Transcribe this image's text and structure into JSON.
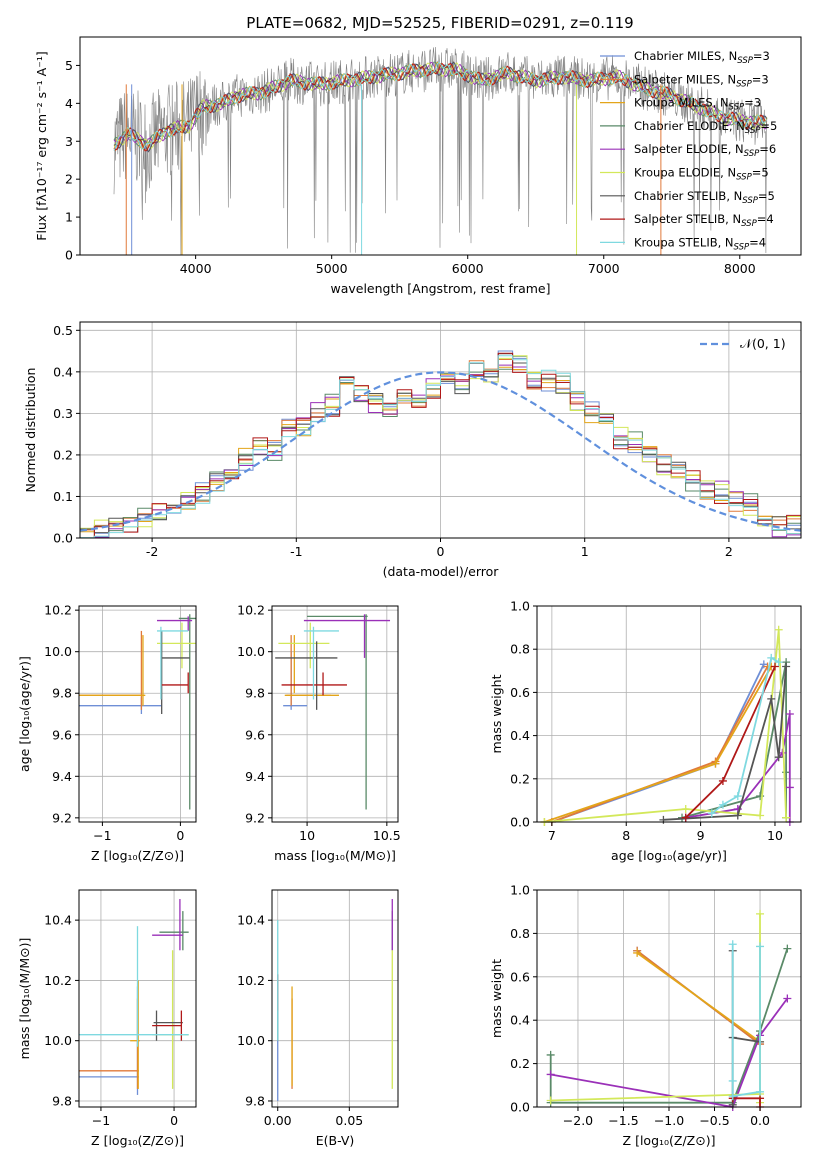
{
  "title": "PLATE=0682, MJD=52525, FIBERID=0291, z=0.119",
  "models": [
    {
      "label": "Chabrier MILES, N",
      "sub": "SSP",
      "eq": "=3",
      "color": "#6f8fd6"
    },
    {
      "label": "Salpeter MILES, N",
      "sub": "SSP",
      "eq": "=3",
      "color": "#e07a3a"
    },
    {
      "label": "Kroupa MILES, N",
      "sub": "SSP",
      "eq": "=3",
      "color": "#e3a51a"
    },
    {
      "label": "Chabrier ELODIE, N",
      "sub": "SSP",
      "eq": "=5",
      "color": "#5a8a68"
    },
    {
      "label": "Salpeter ELODIE, N",
      "sub": "SSP",
      "eq": "=6",
      "color": "#9a30b8"
    },
    {
      "label": "Kroupa ELODIE, N",
      "sub": "SSP",
      "eq": "=5",
      "color": "#d3e85a"
    },
    {
      "label": "Chabrier STELIB, N",
      "sub": "SSP",
      "eq": "=5",
      "color": "#555555"
    },
    {
      "label": "Salpeter STELIB, N",
      "sub": "SSP",
      "eq": "=4",
      "color": "#b01818"
    },
    {
      "label": "Kroupa STELIB, N",
      "sub": "SSP",
      "eq": "=4",
      "color": "#7fd9e0"
    }
  ],
  "chart_data": [
    {
      "id": "spectrum",
      "type": "line",
      "xlabel": "wavelength [Angstrom, rest frame]",
      "ylabel": "Flux [fλ10⁻¹⁷ erg cm⁻² s⁻¹ A⁻¹]",
      "xlim": [
        3150,
        8450
      ],
      "ylim": [
        0,
        5.75
      ],
      "xticks": [
        4000,
        5000,
        6000,
        7000,
        8000
      ],
      "yticks": [
        0,
        1,
        2,
        3,
        4,
        5
      ],
      "grid": false,
      "legend": "right",
      "data_color": "#808080",
      "continuum_x": [
        3400,
        3500,
        3650,
        3800,
        3950,
        4050,
        4200,
        4300,
        4500,
        4700,
        4900,
        5100,
        5300,
        5500,
        5700,
        5900,
        6100,
        6300,
        6500,
        6700,
        6900,
        7100,
        7300,
        7500,
        7700,
        7900,
        8100,
        8200
      ],
      "continuum_y": [
        2.9,
        3.2,
        2.9,
        3.3,
        3.4,
        3.9,
        4.0,
        4.2,
        4.3,
        4.6,
        4.5,
        4.6,
        4.7,
        4.8,
        4.9,
        4.9,
        4.6,
        4.8,
        4.6,
        4.7,
        4.6,
        4.7,
        4.4,
        4.2,
        3.9,
        3.6,
        3.5,
        3.5
      ]
    },
    {
      "id": "residuals",
      "type": "histogram",
      "xlabel": "(data-model)/error",
      "ylabel": "Normed distribution",
      "xlim": [
        -2.5,
        2.5
      ],
      "ylim": [
        0,
        0.52
      ],
      "xticks": [
        -2,
        -1,
        0,
        1,
        2
      ],
      "yticks": [
        0.0,
        0.1,
        0.2,
        0.3,
        0.4,
        0.5
      ],
      "grid": true,
      "legend": "top-right",
      "normal_label": "𝒩(0, 1)",
      "normal_color": "#6090dd",
      "bin_edges_start": -2.5,
      "bin_width": 0.1,
      "base": [
        0.005,
        0.018,
        0.03,
        0.04,
        0.05,
        0.06,
        0.07,
        0.09,
        0.11,
        0.14,
        0.17,
        0.19,
        0.22,
        0.21,
        0.26,
        0.27,
        0.3,
        0.32,
        0.38,
        0.35,
        0.33,
        0.32,
        0.34,
        0.33,
        0.36,
        0.37,
        0.37,
        0.4,
        0.39,
        0.43,
        0.42,
        0.38,
        0.38,
        0.37,
        0.33,
        0.3,
        0.28,
        0.24,
        0.23,
        0.2,
        0.18,
        0.16,
        0.14,
        0.11,
        0.11,
        0.09,
        0.08,
        0.05,
        0.03,
        0.03
      ]
    },
    {
      "id": "age_Z",
      "type": "errorbar",
      "xlabel": "Z [log₁₀(Z/Z⊙)]",
      "ylabel": "age  [log₁₀(age/yr)]",
      "xlim": [
        -1.3,
        0.2
      ],
      "ylim": [
        9.18,
        10.22
      ],
      "xticks": [
        -1,
        0
      ],
      "xtick_labels": [
        "−1",
        "0"
      ],
      "yticks": [
        9.2,
        9.4,
        9.6,
        9.8,
        10.0,
        10.2
      ],
      "grid": true,
      "points": [
        {
          "x": -0.5,
          "y": 9.74,
          "xlo": -1.3,
          "xhi": -0.24,
          "ylo": 9.7,
          "yhi": 9.78
        },
        {
          "x": -0.5,
          "y": 9.79,
          "xlo": -1.3,
          "xhi": -0.5,
          "ylo": 9.72,
          "yhi": 10.1
        },
        {
          "x": -0.48,
          "y": 9.79,
          "xlo": -1.3,
          "xhi": -0.45,
          "ylo": 9.74,
          "yhi": 10.08
        },
        {
          "x": 0.12,
          "y": 10.16,
          "xlo": -0.02,
          "xhi": 0.2,
          "ylo": 9.24,
          "yhi": 10.18
        },
        {
          "x": 0.1,
          "y": 10.15,
          "xlo": -0.3,
          "xhi": 0.15,
          "ylo": 10.1,
          "yhi": 10.17
        },
        {
          "x": 0.02,
          "y": 10.04,
          "xlo": -0.3,
          "xhi": 0.2,
          "ylo": 9.92,
          "yhi": 10.14
        },
        {
          "x": -0.24,
          "y": 9.97,
          "xlo": -0.24,
          "xhi": 0.12,
          "ylo": 9.7,
          "yhi": 10.1
        },
        {
          "x": 0.1,
          "y": 9.84,
          "xlo": -0.24,
          "xhi": 0.1,
          "ylo": 9.8,
          "yhi": 9.9
        },
        {
          "x": -0.25,
          "y": 10.1,
          "xlo": -0.3,
          "xhi": 0.1,
          "ylo": 9.77,
          "yhi": 10.12
        }
      ]
    },
    {
      "id": "age_mass",
      "type": "errorbar",
      "xlabel": "mass [log₁₀(M/M⊙)]",
      "ylabel": "",
      "xlim": [
        9.78,
        10.57
      ],
      "ylim": [
        9.18,
        10.22
      ],
      "xticks": [
        10.0,
        10.5
      ],
      "yticks": [
        9.2,
        9.4,
        9.6,
        9.8,
        10.0,
        10.2
      ],
      "grid": true,
      "points": [
        {
          "x": 9.9,
          "y": 9.74,
          "xlo": 9.85,
          "xhi": 10.0,
          "ylo": 9.72,
          "yhi": 10.0
        },
        {
          "x": 9.9,
          "y": 9.79,
          "xlo": 9.87,
          "xhi": 10.15,
          "ylo": 9.74,
          "yhi": 10.08
        },
        {
          "x": 9.92,
          "y": 9.79,
          "xlo": 9.86,
          "xhi": 10.2,
          "ylo": 9.8,
          "yhi": 10.08
        },
        {
          "x": 10.37,
          "y": 10.17,
          "xlo": 10.0,
          "xhi": 10.38,
          "ylo": 9.24,
          "yhi": 10.18
        },
        {
          "x": 10.36,
          "y": 10.15,
          "xlo": 9.98,
          "xhi": 10.52,
          "ylo": 9.97,
          "yhi": 10.18
        },
        {
          "x": 10.02,
          "y": 10.04,
          "xlo": 9.82,
          "xhi": 10.14,
          "ylo": 9.92,
          "yhi": 10.14
        },
        {
          "x": 10.06,
          "y": 9.97,
          "xlo": 9.8,
          "xhi": 10.19,
          "ylo": 9.72,
          "yhi": 10.05
        },
        {
          "x": 10.1,
          "y": 9.84,
          "xlo": 9.84,
          "xhi": 10.25,
          "ylo": 9.79,
          "yhi": 9.9
        },
        {
          "x": 10.04,
          "y": 10.1,
          "xlo": 9.98,
          "xhi": 10.2,
          "ylo": 9.77,
          "yhi": 10.12
        }
      ]
    },
    {
      "id": "mw_age",
      "type": "line",
      "xlabel": "age  [log₁₀(age/yr)]",
      "ylabel": "mass weight",
      "xlim": [
        6.8,
        10.35
      ],
      "ylim": [
        0,
        1
      ],
      "xticks": [
        7,
        8,
        9,
        10
      ],
      "yticks": [
        0.0,
        0.2,
        0.4,
        0.6,
        0.8,
        1.0
      ],
      "grid": true,
      "series": [
        {
          "x": [
            7.0,
            9.2,
            9.85
          ],
          "y": [
            0.0,
            0.27,
            0.73
          ]
        },
        {
          "x": [
            7.0,
            9.2,
            9.9
          ],
          "y": [
            0.0,
            0.28,
            0.72
          ]
        },
        {
          "x": [
            6.9,
            9.2,
            9.95
          ],
          "y": [
            0.0,
            0.27,
            0.72
          ]
        },
        {
          "x": [
            8.75,
            9.8,
            10.15,
            10.15,
            10.15
          ],
          "y": [
            0.02,
            0.12,
            0.74,
            0.23,
            0.02
          ]
        },
        {
          "x": [
            8.8,
            9.5,
            10.1,
            10.2,
            10.2,
            10.2
          ],
          "y": [
            0.02,
            0.06,
            0.32,
            0.5,
            0.16,
            0.0
          ]
        },
        {
          "x": [
            6.9,
            8.8,
            9.8,
            10.05,
            10.15
          ],
          "y": [
            0.0,
            0.06,
            0.03,
            0.89,
            0.02
          ]
        },
        {
          "x": [
            8.5,
            9.5,
            9.95,
            10.05,
            10.15
          ],
          "y": [
            0.01,
            0.03,
            0.57,
            0.3,
            0.72
          ]
        },
        {
          "x": [
            8.8,
            9.3,
            10.0
          ],
          "y": [
            0.02,
            0.19,
            0.72
          ]
        },
        {
          "x": [
            9.15,
            9.3,
            9.5,
            9.95,
            10.05
          ],
          "y": [
            0.04,
            0.08,
            0.12,
            0.76,
            0.74
          ]
        }
      ]
    },
    {
      "id": "mass_Z",
      "type": "errorbar",
      "xlabel": "Z [log₁₀(Z/Z⊙)]",
      "ylabel": "mass [log₁₀(M/M⊙)]",
      "xlim": [
        -1.3,
        0.3
      ],
      "ylim": [
        9.78,
        10.5
      ],
      "xticks": [
        -1,
        0
      ],
      "xtick_labels": [
        "−1",
        "0"
      ],
      "yticks": [
        9.8,
        10.0,
        10.2,
        10.4
      ],
      "grid": true,
      "points": [
        {
          "x": -0.5,
          "y": 9.88,
          "xlo": -1.3,
          "xhi": -0.48,
          "ylo": 9.82,
          "yhi": 10.18
        },
        {
          "x": -0.5,
          "y": 9.9,
          "xlo": -1.3,
          "xhi": -0.48,
          "ylo": 9.84,
          "yhi": 10.14
        },
        {
          "x": -0.49,
          "y": 10.0,
          "xlo": -0.6,
          "xhi": -0.47,
          "ylo": 9.84,
          "yhi": 10.2
        },
        {
          "x": 0.12,
          "y": 10.36,
          "xlo": -0.2,
          "xhi": 0.2,
          "ylo": 10.3,
          "yhi": 10.43
        },
        {
          "x": 0.08,
          "y": 10.35,
          "xlo": -0.3,
          "xhi": 0.12,
          "ylo": 10.3,
          "yhi": 10.47
        },
        {
          "x": -0.02,
          "y": 10.02,
          "xlo": -0.3,
          "xhi": 0.2,
          "ylo": 9.84,
          "yhi": 10.3
        },
        {
          "x": -0.24,
          "y": 10.06,
          "xlo": -0.28,
          "xhi": 0.12,
          "ylo": 10.0,
          "yhi": 10.1
        },
        {
          "x": 0.1,
          "y": 10.05,
          "xlo": -0.3,
          "xhi": 0.1,
          "ylo": 10.0,
          "yhi": 10.1
        },
        {
          "x": -0.5,
          "y": 10.02,
          "xlo": -1.3,
          "xhi": 0.2,
          "ylo": 9.98,
          "yhi": 10.38
        }
      ]
    },
    {
      "id": "mass_ebv",
      "type": "errorbar",
      "xlabel": "E(B-V)",
      "ylabel": "",
      "xlim": [
        -0.004,
        0.084
      ],
      "ylim": [
        9.78,
        10.5
      ],
      "xticks": [
        0.0,
        0.05
      ],
      "xtick_labels": [
        "0.00",
        "0.05"
      ],
      "yticks": [
        9.8,
        10.0,
        10.2,
        10.4
      ],
      "grid": true,
      "points": [
        {
          "x": 0.0,
          "y": 9.88,
          "ylo": 9.8,
          "yhi": 10.2
        },
        {
          "x": 0.01,
          "y": 9.9,
          "ylo": 9.84,
          "yhi": 10.14
        },
        {
          "x": 0.01,
          "y": 10.0,
          "ylo": 9.85,
          "yhi": 10.18
        },
        {
          "x": 0.08,
          "y": 10.36,
          "ylo": 10.3,
          "yhi": 10.43
        },
        {
          "x": 0.08,
          "y": 10.4,
          "ylo": 10.3,
          "yhi": 10.47
        },
        {
          "x": 0.08,
          "y": 10.02,
          "ylo": 9.84,
          "yhi": 10.3
        },
        {
          "x": 0.0,
          "y": 10.06,
          "ylo": 10.0,
          "yhi": 10.22
        },
        {
          "x": 0.0,
          "y": 10.15,
          "ylo": 10.1,
          "yhi": 10.22
        },
        {
          "x": 0.0,
          "y": 10.2,
          "ylo": 10.0,
          "yhi": 10.4
        }
      ]
    },
    {
      "id": "mw_Z",
      "type": "line",
      "xlabel": "Z [log₁₀(Z/Z⊙)]",
      "ylabel": "mass weight",
      "xlim": [
        -2.45,
        0.45
      ],
      "ylim": [
        0,
        1
      ],
      "xticks": [
        -2.0,
        -1.5,
        -1.0,
        -0.5,
        0.0
      ],
      "xtick_labels": [
        "−2.0",
        "−1.5",
        "−1.0",
        "−0.5",
        "0.0"
      ],
      "yticks": [
        0.0,
        0.2,
        0.4,
        0.6,
        0.8,
        1.0
      ],
      "grid": true,
      "series": [
        {
          "x": [
            -1.35,
            0.0
          ],
          "y": [
            0.72,
            0.29
          ]
        },
        {
          "x": [
            -1.35,
            0.0
          ],
          "y": [
            0.72,
            0.29
          ]
        },
        {
          "x": [
            -1.35,
            0.0
          ],
          "y": [
            0.71,
            0.3
          ]
        },
        {
          "x": [
            -2.3,
            -2.3,
            -0.3,
            0.0,
            0.3
          ],
          "y": [
            0.24,
            0.02,
            0.02,
            0.35,
            0.73
          ]
        },
        {
          "x": [
            -2.3,
            -0.3,
            0.0,
            0.3
          ],
          "y": [
            0.15,
            0.0,
            0.33,
            0.5
          ]
        },
        {
          "x": [
            -2.3,
            0.0,
            0.0,
            0.0
          ],
          "y": [
            0.03,
            0.06,
            0.89,
            0.02
          ]
        },
        {
          "x": [
            -0.3,
            -0.3,
            -0.3,
            0.0
          ],
          "y": [
            0.72,
            0.01,
            0.32,
            0.3
          ]
        },
        {
          "x": [
            -0.3,
            0.0,
            0.0
          ],
          "y": [
            0.04,
            0.04,
            0.0
          ]
        },
        {
          "x": [
            -0.3,
            -0.3,
            -0.3,
            0.0,
            0.0
          ],
          "y": [
            0.75,
            0.12,
            0.05,
            0.07,
            0.74
          ]
        }
      ]
    }
  ]
}
